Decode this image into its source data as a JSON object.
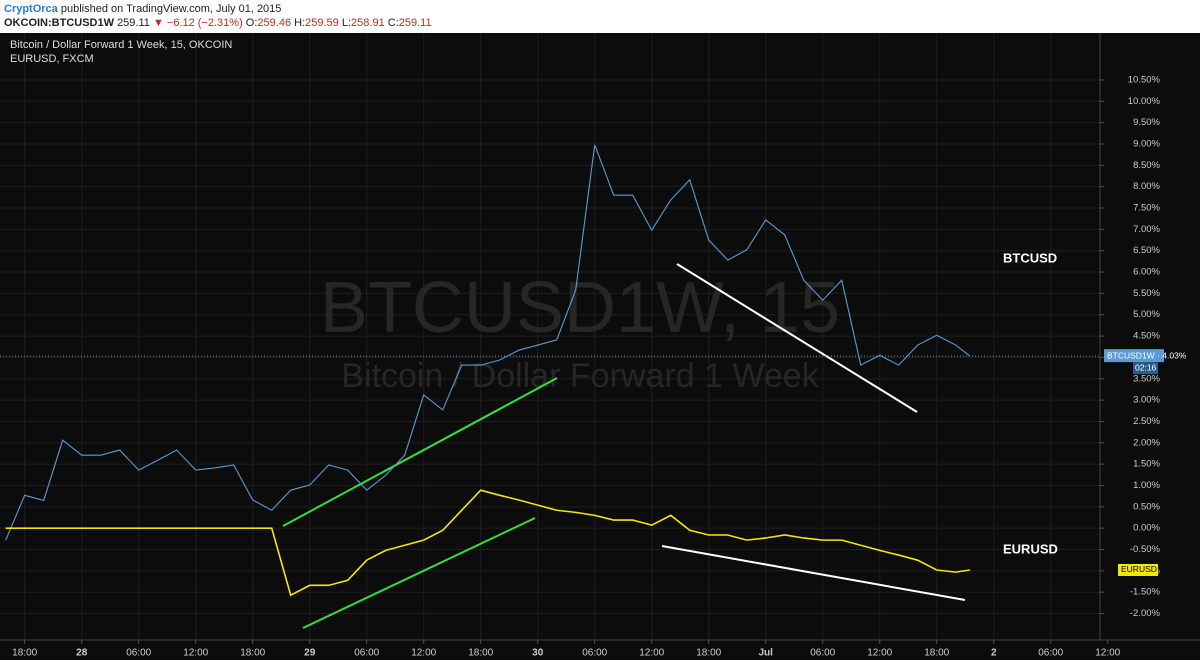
{
  "header": {
    "author": "CryptOrca",
    "published": "published on TradingView.com, July 01, 2015",
    "symbol": "OKCOIN:BTCUSD1W",
    "last": "259.11",
    "change": "▼ −6.12 (−2.31%)",
    "o_label": "O:",
    "o": "259.46",
    "h_label": "H:",
    "h": "259.59",
    "l_label": "L:",
    "l": "258.91",
    "c_label": "C:",
    "c": "259.11"
  },
  "chart_data": {
    "type": "line",
    "watermark": "BTCUSD1W, 15",
    "watermark_sub": "Bitcoin / Dollar Forward 1 Week",
    "x": [
      -2,
      0,
      2,
      4,
      6,
      8,
      10,
      12,
      14,
      16,
      18,
      20,
      22,
      24,
      26,
      28,
      30,
      32,
      34,
      36,
      38,
      40,
      42,
      44,
      46,
      48,
      50,
      52,
      54,
      56,
      58,
      60,
      62,
      64,
      66,
      68,
      70,
      72,
      74,
      76,
      78,
      80,
      82,
      84,
      86,
      88,
      90,
      92,
      94,
      96,
      98,
      99.5
    ],
    "series": [
      {
        "name": "Bitcoin / Dollar Forward 1 Week, 15, OKCOIN",
        "color": "#5b9bd5",
        "values": [
          -0.28,
          0.77,
          0.65,
          2.06,
          1.71,
          1.71,
          1.83,
          1.36,
          1.59,
          1.83,
          1.36,
          1.41,
          1.48,
          0.66,
          0.42,
          0.89,
          1.01,
          1.48,
          1.36,
          0.89,
          1.24,
          1.71,
          3.12,
          2.77,
          3.82,
          3.82,
          3.94,
          4.17,
          4.29,
          4.41,
          5.58,
          8.98,
          7.8,
          7.8,
          6.98,
          7.69,
          8.16,
          6.75,
          6.28,
          6.52,
          7.22,
          6.87,
          5.81,
          5.34,
          5.81,
          3.82,
          4.05,
          3.82,
          4.29,
          4.52,
          4.29,
          4.03
        ]
      },
      {
        "name": "EURUSD, FXCM",
        "color": "#f5e60a",
        "values": [
          0,
          0,
          0,
          0,
          0,
          0,
          0,
          0,
          0,
          0,
          0,
          0,
          0,
          0,
          0,
          -1.57,
          -1.34,
          -1.34,
          -1.22,
          -0.75,
          -0.52,
          -0.4,
          -0.28,
          -0.05,
          0.42,
          0.89,
          0.77,
          0.66,
          0.54,
          0.42,
          0.37,
          0.3,
          0.19,
          0.19,
          0.07,
          0.3,
          -0.05,
          -0.16,
          -0.16,
          -0.28,
          -0.23,
          -0.16,
          -0.23,
          -0.28,
          -0.28,
          -0.4,
          -0.52,
          -0.63,
          -0.75,
          -0.98,
          -1.03,
          -0.98
        ]
      }
    ],
    "annotations": {
      "btc": "BTCUSD",
      "eur": "EURUSD",
      "btc_tag": "BTCUSD1W · 4.03%",
      "countdown": "02:16",
      "eur_tag": "EURUSD"
    },
    "xlim": [
      -2.6,
      119.5
    ],
    "xticks": [
      {
        "value": 0,
        "label": "18:00"
      },
      {
        "value": 6,
        "label": "28"
      },
      {
        "value": 12,
        "label": "06:00"
      },
      {
        "value": 18,
        "label": "12:00"
      },
      {
        "value": 24,
        "label": "18:00"
      },
      {
        "value": 30,
        "label": "29"
      },
      {
        "value": 36,
        "label": "06:00"
      },
      {
        "value": 42,
        "label": "12:00"
      },
      {
        "value": 48,
        "label": "18:00"
      },
      {
        "value": 54,
        "label": "30"
      },
      {
        "value": 60,
        "label": "06:00"
      },
      {
        "value": 66,
        "label": "12:00"
      },
      {
        "value": 72,
        "label": "18:00"
      },
      {
        "value": 78,
        "label": "Jul"
      },
      {
        "value": 84,
        "label": "06:00"
      },
      {
        "value": 90,
        "label": "12:00"
      },
      {
        "value": 96,
        "label": "18:00"
      },
      {
        "value": 102,
        "label": "2"
      },
      {
        "value": 108,
        "label": "06:00"
      },
      {
        "value": 114,
        "label": "12:00"
      }
    ],
    "ylim": [
      -2.62,
      11.6
    ],
    "yticks": [
      {
        "value": -2,
        "label": "-2.00%"
      },
      {
        "value": -1.5,
        "label": "-1.50%"
      },
      {
        "value": -1,
        "label": "-1.00%"
      },
      {
        "value": -0.5,
        "label": "-0.50%"
      },
      {
        "value": 0,
        "label": "0.00%"
      },
      {
        "value": 0.5,
        "label": "0.50%"
      },
      {
        "value": 1,
        "label": "1.00%"
      },
      {
        "value": 1.5,
        "label": "1.50%"
      },
      {
        "value": 2,
        "label": "2.00%"
      },
      {
        "value": 2.5,
        "label": "2.50%"
      },
      {
        "value": 3,
        "label": "3.00%"
      },
      {
        "value": 3.5,
        "label": "3.50%"
      },
      {
        "value": 4,
        "label": "4.00%"
      },
      {
        "value": 4.5,
        "label": "4.50%"
      },
      {
        "value": 5,
        "label": "5.00%"
      },
      {
        "value": 5.5,
        "label": "5.50%"
      },
      {
        "value": 6,
        "label": "6.00%"
      },
      {
        "value": 6.5,
        "label": "6.50%"
      },
      {
        "value": 7,
        "label": "7.00%"
      },
      {
        "value": 7.5,
        "label": "7.50%"
      },
      {
        "value": 8,
        "label": "8.00%"
      },
      {
        "value": 8.5,
        "label": "8.50%"
      },
      {
        "value": 9,
        "label": "9.00%"
      },
      {
        "value": 9.5,
        "label": "9.50%"
      },
      {
        "value": 10,
        "label": "10.00%"
      },
      {
        "value": 10.5,
        "label": "10.50%"
      }
    ],
    "grid": true
  }
}
